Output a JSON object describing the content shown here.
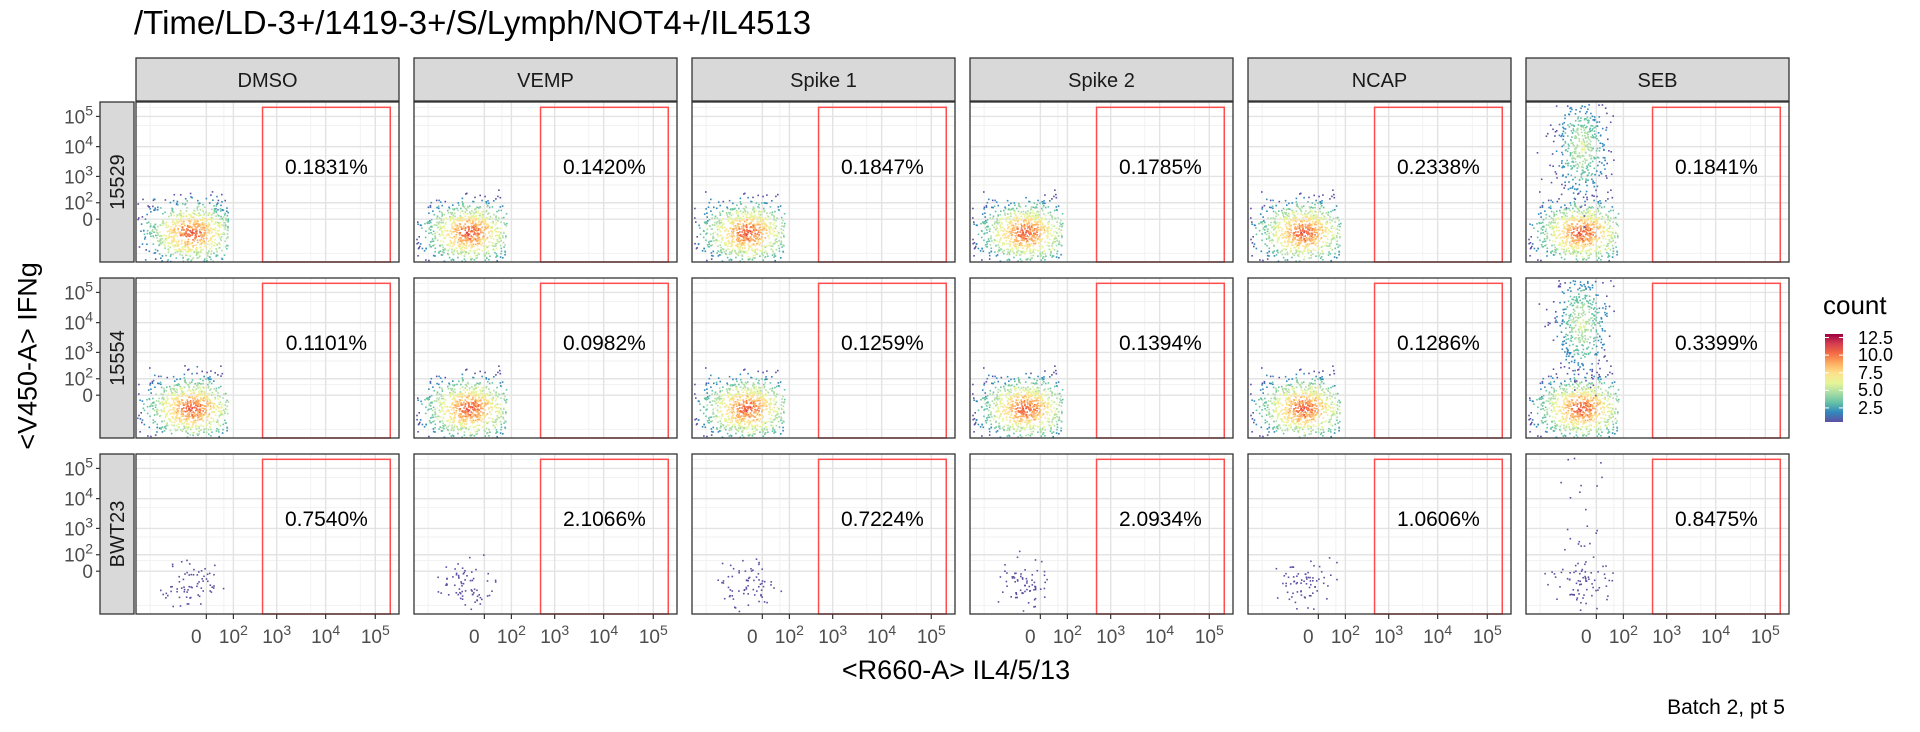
{
  "chart_data": {
    "type": "heatmap",
    "title": "/Time/LD-3+/1419-3+/S/Lymph/NOT4+/IL4513",
    "xlabel": "<R660-A> IL4/5/13",
    "ylabel": "<V450-A> IFNg",
    "caption": "Batch 2, pt 5",
    "x_scale": "biexponential",
    "y_scale": "biexponential",
    "x_ticks": [
      "0",
      "10^2",
      "10^3",
      "10^4",
      "10^5"
    ],
    "y_ticks": [
      "0",
      "10^2",
      "10^3",
      "10^4",
      "10^5"
    ],
    "grid": true,
    "columns": [
      "DMSO",
      "VEMP",
      "Spike 1",
      "Spike 2",
      "NCAP",
      "SEB"
    ],
    "rows": [
      "15529",
      "15554",
      "BWT23"
    ],
    "gate": {
      "color": "#ff4d4d",
      "x_range": [
        500,
        200000
      ],
      "y_range": [
        -1000,
        200000
      ]
    },
    "gate_percentages": [
      [
        "0.1831%",
        "0.1420%",
        "0.1847%",
        "0.1785%",
        "0.2338%",
        "0.1841%"
      ],
      [
        "0.1101%",
        "0.0982%",
        "0.1259%",
        "0.1394%",
        "0.1286%",
        "0.3399%"
      ],
      [
        "0.7540%",
        "2.1066%",
        "0.7224%",
        "2.0934%",
        "1.0606%",
        "0.8475%"
      ]
    ],
    "legend": {
      "title": "count",
      "ticks": [
        "2.5",
        "5.0",
        "7.5",
        "10.0",
        "12.5"
      ],
      "range": [
        0.5,
        13
      ],
      "colors": [
        "#5e4fa2",
        "#3288bd",
        "#66c2a5",
        "#abdda4",
        "#e6f598",
        "#fee08b",
        "#fdae61",
        "#f46d43",
        "#d53e4f",
        "#9e0142"
      ],
      "placement": "right"
    }
  }
}
